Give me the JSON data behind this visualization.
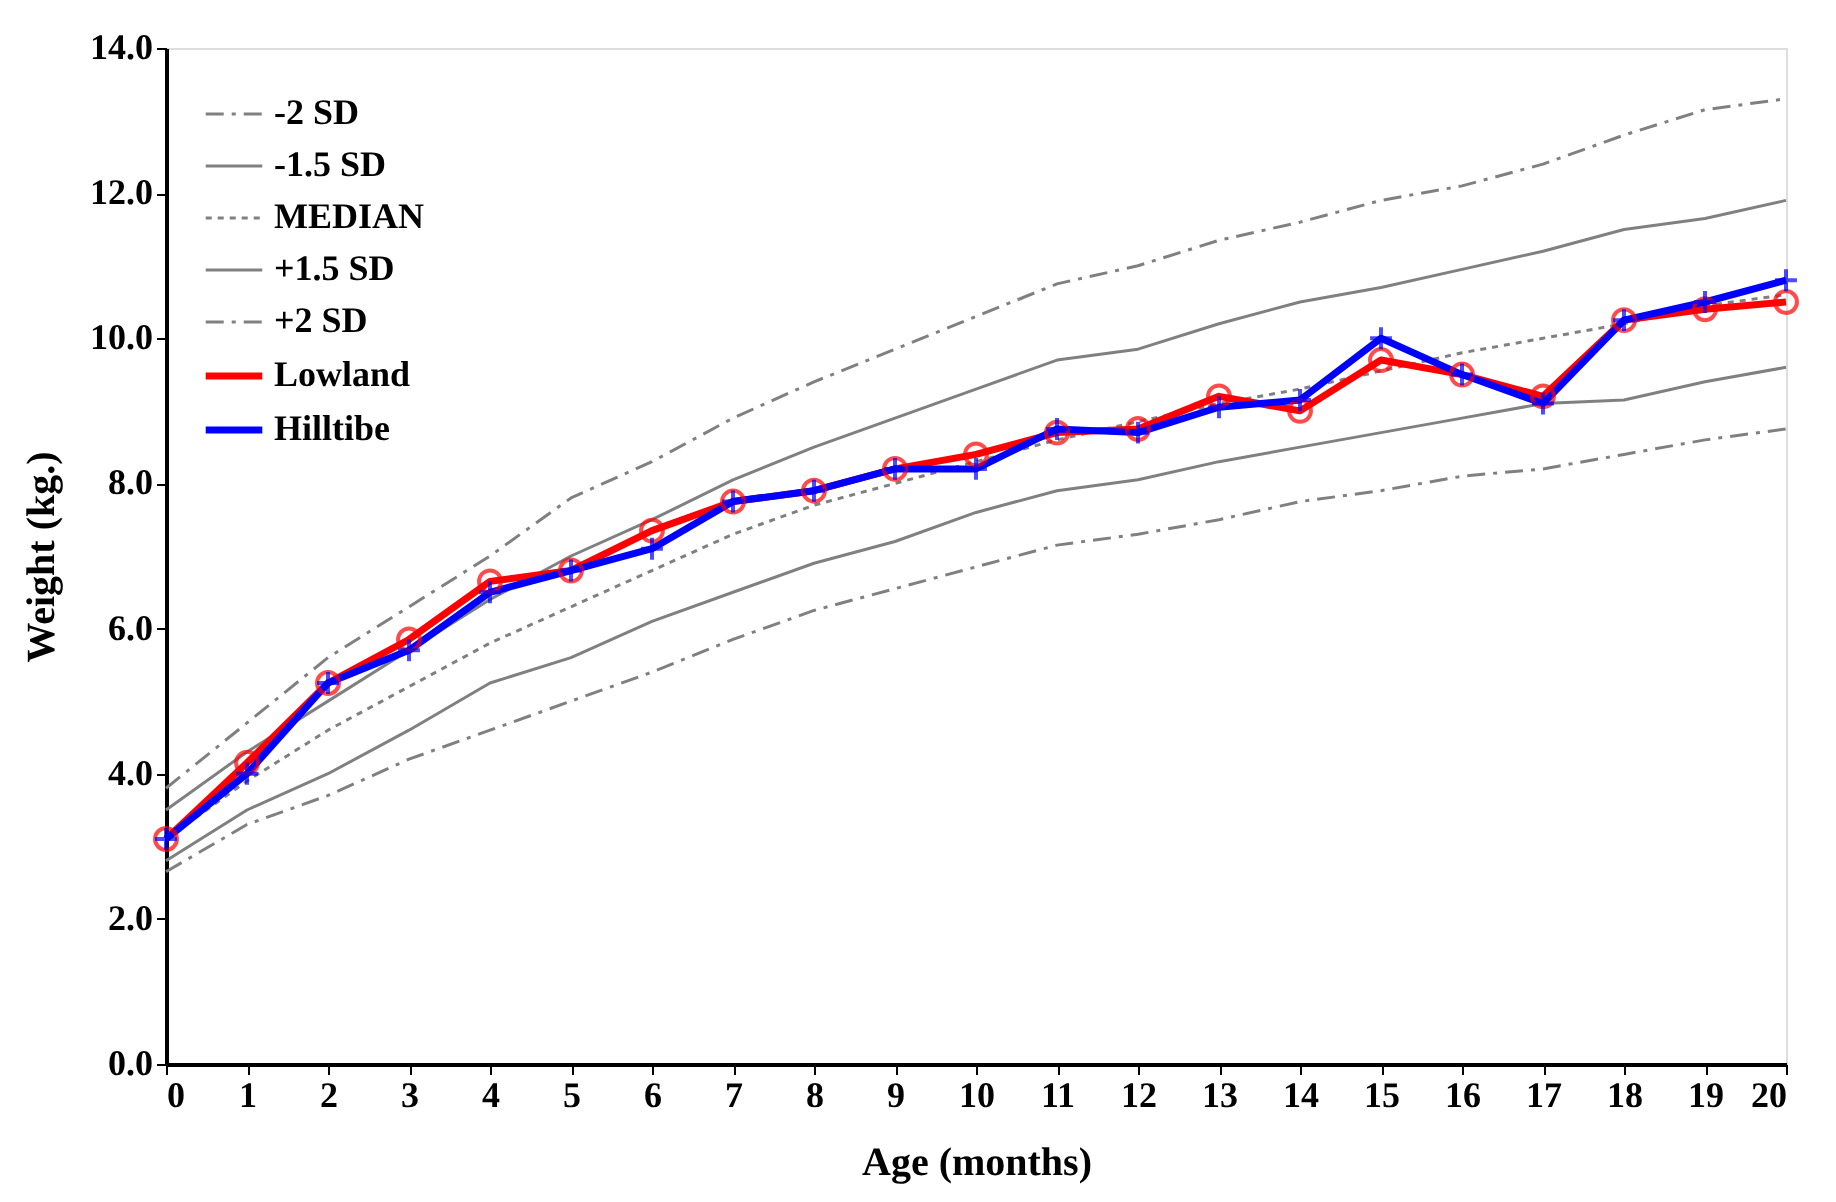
{
  "chart_data": {
    "type": "line",
    "xlabel": "Age (months)",
    "ylabel": "Weight (kg.)",
    "x": [
      0,
      1,
      2,
      3,
      4,
      5,
      6,
      7,
      8,
      9,
      10,
      11,
      12,
      13,
      14,
      15,
      16,
      17,
      18,
      19,
      20
    ],
    "xlim": [
      0,
      20
    ],
    "xticks": [
      0,
      1,
      2,
      3,
      4,
      5,
      6,
      7,
      8,
      9,
      10,
      11,
      12,
      13,
      14,
      15,
      16,
      17,
      18,
      19,
      20
    ],
    "ylim": [
      0,
      14
    ],
    "yticks": [
      {
        "value": 0,
        "label": "0.0"
      },
      {
        "value": 2,
        "label": "2.0"
      },
      {
        "value": 4,
        "label": "4.0"
      },
      {
        "value": 6,
        "label": "6.0"
      },
      {
        "value": 8,
        "label": "8.0"
      },
      {
        "value": 10,
        "label": "10.0"
      },
      {
        "value": 12,
        "label": "12.0"
      },
      {
        "value": 14,
        "label": "14.0"
      }
    ],
    "grid": false,
    "legend": "top left",
    "series": [
      {
        "name": "-2 SD",
        "color": "#808080",
        "line_style": "dashed",
        "marker": "none",
        "values": [
          2.65,
          3.3,
          3.7,
          4.2,
          4.6,
          5.0,
          5.4,
          5.85,
          6.25,
          6.55,
          6.85,
          7.15,
          7.3,
          7.5,
          7.75,
          7.9,
          8.1,
          8.2,
          8.4,
          8.6,
          8.75
        ]
      },
      {
        "name": "-1.5 SD",
        "color": "#808080",
        "line_style": "solid",
        "marker": "none",
        "values": [
          2.8,
          3.5,
          4.0,
          4.6,
          5.25,
          5.6,
          6.1,
          6.5,
          6.9,
          7.2,
          7.6,
          7.9,
          8.05,
          8.3,
          8.5,
          8.7,
          8.9,
          9.1,
          9.15,
          9.4,
          9.6
        ]
      },
      {
        "name": "MEDIAN",
        "color": "#808080",
        "line_style": "dotted",
        "marker": "none",
        "values": [
          3.1,
          3.9,
          4.6,
          5.2,
          5.8,
          6.3,
          6.8,
          7.3,
          7.7,
          8.0,
          8.3,
          8.6,
          8.85,
          9.1,
          9.3,
          9.55,
          9.8,
          10.0,
          10.2,
          10.45,
          10.6
        ]
      },
      {
        "name": "+1.5 SD",
        "color": "#808080",
        "line_style": "solid",
        "marker": "none",
        "values": [
          3.5,
          4.3,
          5.0,
          5.7,
          6.4,
          7.0,
          7.5,
          8.05,
          8.5,
          8.9,
          9.3,
          9.7,
          9.85,
          10.2,
          10.5,
          10.7,
          10.95,
          11.2,
          11.5,
          11.65,
          11.9
        ]
      },
      {
        "name": "+2 SD",
        "color": "#808080",
        "line_style": "dashed",
        "marker": "none",
        "values": [
          3.8,
          4.7,
          5.6,
          6.3,
          7.0,
          7.8,
          8.3,
          8.9,
          9.4,
          9.85,
          10.3,
          10.75,
          11.0,
          11.35,
          11.6,
          11.9,
          12.1,
          12.4,
          12.8,
          13.15,
          13.3
        ]
      },
      {
        "name": "Lowland",
        "color": "#ff0000",
        "line_style": "solid",
        "marker": "circle",
        "values": [
          3.1,
          4.15,
          5.25,
          5.85,
          6.65,
          6.8,
          7.35,
          7.75,
          7.9,
          8.2,
          8.4,
          8.7,
          8.75,
          9.2,
          9.0,
          9.7,
          9.5,
          9.2,
          10.25,
          10.4,
          10.5
        ]
      },
      {
        "name": "Hilltibe",
        "color": "#0000ff",
        "line_style": "solid",
        "marker": "cross",
        "values": [
          3.1,
          4.0,
          5.25,
          5.7,
          6.5,
          6.8,
          7.1,
          7.75,
          7.9,
          8.2,
          8.2,
          8.75,
          8.7,
          9.05,
          9.15,
          10.0,
          9.5,
          9.1,
          10.25,
          10.5,
          10.8
        ]
      }
    ]
  }
}
